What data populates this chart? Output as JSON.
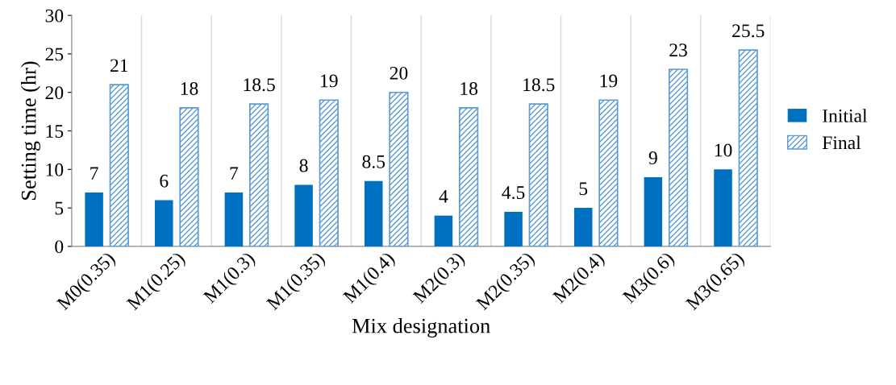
{
  "chart_data": {
    "type": "bar",
    "xlabel": "Mix designation",
    "ylabel": "Setting time (hr)",
    "categories": [
      "M0(0.35)",
      "M1(0.25)",
      "M1(0.3)",
      "M1(0.35)",
      "M1(0.4)",
      "M2(0.3)",
      "M2(0.35)",
      "M2(0.4)",
      "M3(0.6)",
      "M3(0.65)"
    ],
    "series": [
      {
        "name": "Initial",
        "color": "#0070c0",
        "values": [
          7,
          6,
          7,
          8,
          8.5,
          4,
          4.5,
          5,
          9,
          10
        ]
      },
      {
        "name": "Final",
        "color": "#5b9bd5",
        "values": [
          21,
          18,
          18.5,
          19,
          20,
          18,
          18.5,
          19,
          23,
          25.5
        ]
      }
    ],
    "ylim": [
      0,
      30
    ],
    "yticks": [
      0,
      5,
      10,
      15,
      20,
      25,
      30
    ],
    "grid": "x",
    "legend": "right",
    "data_labels": true
  }
}
